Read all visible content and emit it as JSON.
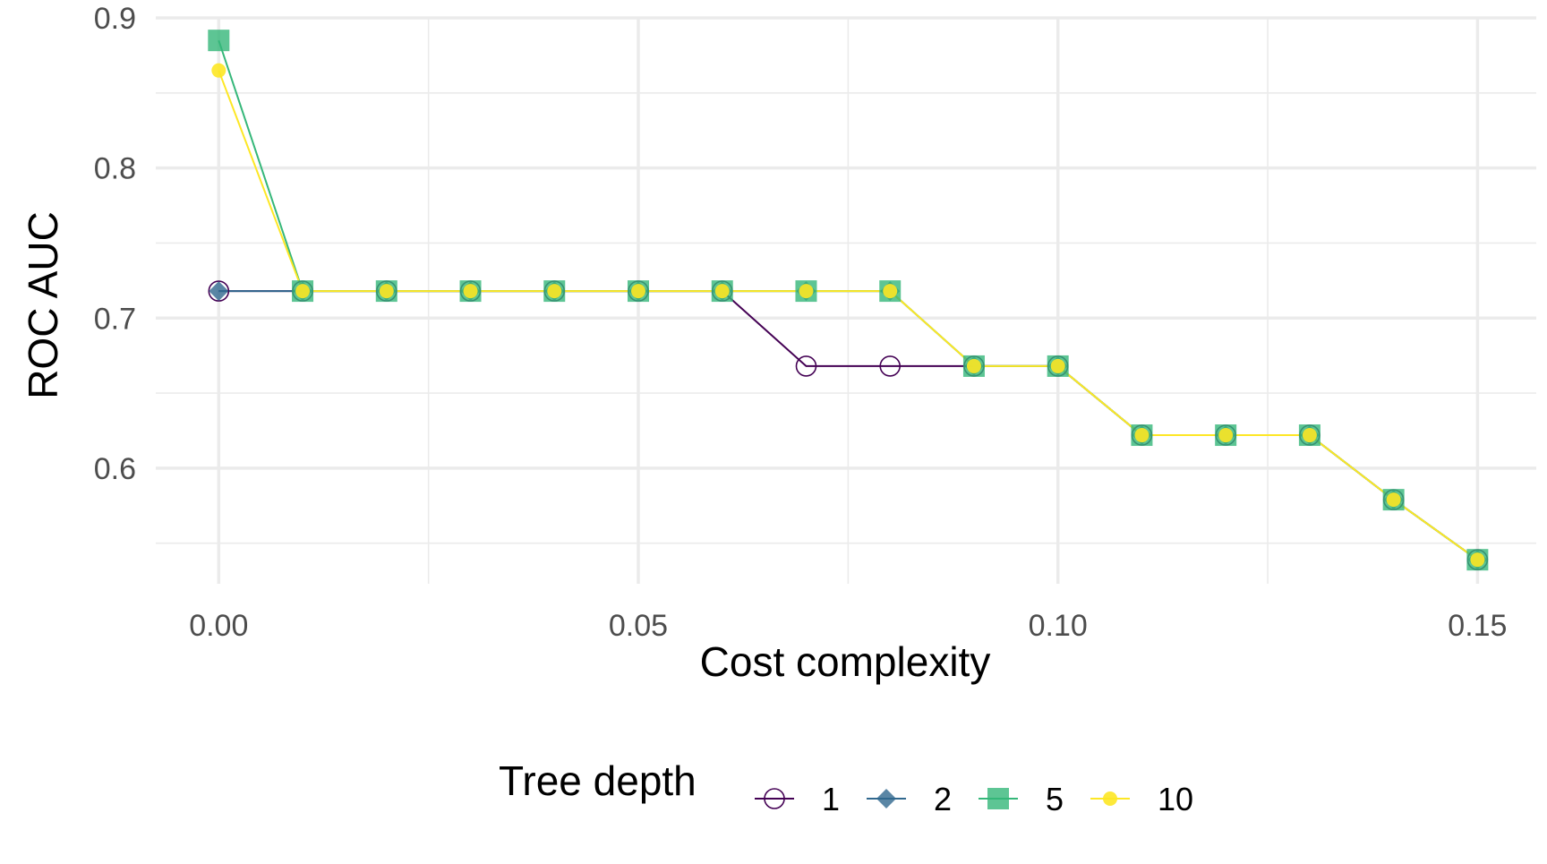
{
  "chart_data": {
    "type": "line",
    "xlabel": "Cost complexity",
    "ylabel": "ROC AUC",
    "xlim": [
      -0.0075,
      0.157
    ],
    "ylim": [
      0.523,
      0.9
    ],
    "x_ticks": [
      "0.00",
      "0.05",
      "0.10",
      "0.15"
    ],
    "x_tick_values": [
      0.0,
      0.05,
      0.1,
      0.15
    ],
    "y_ticks": [
      "0.6",
      "0.7",
      "0.8",
      "0.9"
    ],
    "y_tick_values": [
      0.6,
      0.7,
      0.8,
      0.9
    ],
    "grid": true,
    "legend": {
      "title": "Tree depth",
      "position": "bottom"
    },
    "x": [
      0.0,
      0.01,
      0.02,
      0.03,
      0.04,
      0.05,
      0.06,
      0.07,
      0.08,
      0.09,
      0.1,
      0.11,
      0.12,
      0.13,
      0.14,
      0.15
    ],
    "series": [
      {
        "name": "1",
        "shape": "open-circle",
        "color": "#440154",
        "values": [
          0.718,
          0.718,
          0.718,
          0.718,
          0.718,
          0.718,
          0.718,
          0.668,
          0.668,
          0.668,
          0.668,
          0.622,
          0.622,
          0.622,
          0.579,
          0.539
        ]
      },
      {
        "name": "2",
        "shape": "diamond",
        "color": "#31688e",
        "values": [
          0.718,
          0.718,
          0.718,
          0.718,
          0.718,
          0.718,
          0.718,
          0.718,
          0.718,
          0.668,
          0.668,
          0.622,
          0.622,
          0.622,
          0.579,
          0.539
        ]
      },
      {
        "name": "5",
        "shape": "square",
        "color": "#35b779",
        "values": [
          0.885,
          0.718,
          0.718,
          0.718,
          0.718,
          0.718,
          0.718,
          0.718,
          0.718,
          0.668,
          0.668,
          0.622,
          0.622,
          0.622,
          0.579,
          0.539
        ]
      },
      {
        "name": "10",
        "shape": "circle",
        "color": "#fde725",
        "values": [
          0.865,
          0.718,
          0.718,
          0.718,
          0.718,
          0.718,
          0.718,
          0.718,
          0.718,
          0.668,
          0.668,
          0.622,
          0.622,
          0.622,
          0.579,
          0.539
        ]
      }
    ]
  }
}
